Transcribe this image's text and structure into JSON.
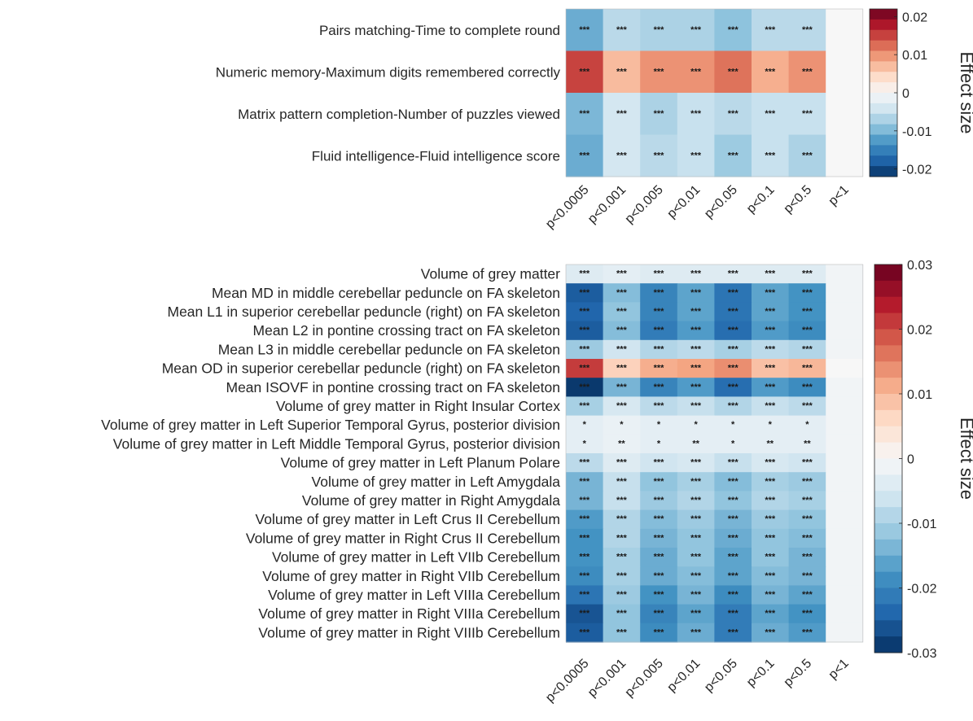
{
  "chart_data": [
    {
      "type": "heatmap",
      "x_categories": [
        "p<0.0005",
        "p<0.001",
        "p<0.005",
        "p<0.01",
        "p<0.05",
        "p<0.1",
        "p<0.5",
        "p<1"
      ],
      "y_categories": [
        "Pairs matching-Time to complete round",
        "Numeric memory-Maximum digits remembered correctly",
        "Matrix pattern completion-Number of puzzles viewed",
        "Fluid intelligence-Fluid intelligence score"
      ],
      "values": [
        [
          -0.011,
          -0.006,
          -0.007,
          -0.007,
          -0.009,
          -0.006,
          -0.006,
          0.0
        ],
        [
          0.015,
          0.007,
          0.01,
          0.01,
          0.012,
          0.008,
          0.01,
          0.0
        ],
        [
          -0.01,
          -0.004,
          -0.007,
          -0.005,
          -0.006,
          -0.005,
          -0.005,
          0.0
        ],
        [
          -0.011,
          -0.004,
          -0.006,
          -0.005,
          -0.008,
          -0.005,
          -0.007,
          0.0
        ]
      ],
      "annotations": [
        [
          "***",
          "***",
          "***",
          "***",
          "***",
          "***",
          "***",
          ""
        ],
        [
          "***",
          "***",
          "***",
          "***",
          "***",
          "***",
          "***",
          ""
        ],
        [
          "***",
          "***",
          "***",
          "***",
          "***",
          "***",
          "***",
          ""
        ],
        [
          "***",
          "***",
          "***",
          "***",
          "***",
          "***",
          "***",
          ""
        ]
      ],
      "colorbar": {
        "label": "Effect size",
        "range": [
          -0.022,
          0.022
        ],
        "ticks": [
          0.02,
          0.01,
          0,
          -0.01,
          -0.02
        ],
        "tick_labels": [
          "0.02",
          "0.01",
          "0",
          "-0.01",
          "-0.02"
        ]
      },
      "colormap": "blue-white-red"
    },
    {
      "type": "heatmap",
      "x_categories": [
        "p<0.0005",
        "p<0.001",
        "p<0.005",
        "p<0.01",
        "p<0.05",
        "p<0.1",
        "p<0.5",
        "p<1"
      ],
      "y_categories": [
        "Volume of grey matter",
        "Mean MD  in middle cerebellar peduncle on FA  skeleton",
        "Mean L1 in superior cerebellar peduncle (right) on FA  skeleton",
        "Mean L2  in pontine crossing tract on FA  skeleton",
        "Mean L3 in middle cerebellar peduncle on FA  skeleton",
        "Mean OD  in superior cerebellar peduncle (right) on FA  skeleton",
        "Mean ISOVF  in pontine crossing tract on FA  skeleton",
        "Volume of grey matter in Right Insular Cortex",
        "Volume of grey matter in Left Superior Temporal Gyrus, posterior division",
        "Volume of grey matter in Left Middle Temporal Gyrus, posterior division",
        "Volume of grey matter in Left Planum Polare",
        "Volume of grey matter in Left Amygdala",
        "Volume of grey matter in Right Amygdala",
        "Volume of grey matter in Left Crus II Cerebellum",
        "Volume of grey matter in Right Crus II Cerebellum",
        "Volume of grey matter in Left VIIb Cerebellum",
        "Volume of grey matter in Right VIIb Cerebellum",
        "Volume of grey matter in Left VIIIa Cerebellum",
        "Volume of grey matter in Right VIIIa Cerebellum",
        "Volume of grey matter in Right VIIIb Cerebellum"
      ],
      "values": [
        [
          -0.004,
          -0.003,
          -0.004,
          -0.004,
          -0.004,
          -0.004,
          -0.004,
          -0.001
        ],
        [
          -0.025,
          -0.013,
          -0.02,
          -0.016,
          -0.022,
          -0.016,
          -0.018,
          -0.001
        ],
        [
          -0.024,
          -0.012,
          -0.02,
          -0.016,
          -0.022,
          -0.016,
          -0.018,
          -0.001
        ],
        [
          -0.025,
          -0.013,
          -0.021,
          -0.017,
          -0.023,
          -0.017,
          -0.019,
          -0.001
        ],
        [
          -0.011,
          -0.006,
          -0.009,
          -0.008,
          -0.01,
          -0.008,
          -0.009,
          -0.001
        ],
        [
          0.021,
          0.007,
          0.011,
          0.012,
          0.014,
          0.009,
          0.01,
          0.0
        ],
        [
          -0.029,
          -0.014,
          -0.02,
          -0.017,
          -0.023,
          -0.017,
          -0.019,
          -0.001
        ],
        [
          -0.01,
          -0.005,
          -0.008,
          -0.007,
          -0.009,
          -0.007,
          -0.008,
          -0.001
        ],
        [
          -0.003,
          -0.002,
          -0.003,
          -0.003,
          -0.003,
          -0.003,
          -0.003,
          -0.001
        ],
        [
          -0.003,
          -0.002,
          -0.003,
          -0.003,
          -0.003,
          -0.003,
          -0.003,
          -0.001
        ],
        [
          -0.008,
          -0.004,
          -0.006,
          -0.005,
          -0.007,
          -0.005,
          -0.006,
          -0.001
        ],
        [
          -0.014,
          -0.007,
          -0.012,
          -0.01,
          -0.013,
          -0.01,
          -0.011,
          -0.001
        ],
        [
          -0.014,
          -0.007,
          -0.011,
          -0.009,
          -0.012,
          -0.009,
          -0.01,
          -0.001
        ],
        [
          -0.017,
          -0.009,
          -0.013,
          -0.011,
          -0.014,
          -0.011,
          -0.012,
          -0.001
        ],
        [
          -0.018,
          -0.009,
          -0.014,
          -0.012,
          -0.015,
          -0.012,
          -0.013,
          -0.001
        ],
        [
          -0.018,
          -0.01,
          -0.015,
          -0.012,
          -0.016,
          -0.012,
          -0.014,
          -0.001
        ],
        [
          -0.019,
          -0.01,
          -0.015,
          -0.013,
          -0.016,
          -0.013,
          -0.014,
          -0.001
        ],
        [
          -0.022,
          -0.011,
          -0.018,
          -0.014,
          -0.019,
          -0.014,
          -0.016,
          -0.001
        ],
        [
          -0.026,
          -0.012,
          -0.02,
          -0.016,
          -0.021,
          -0.016,
          -0.018,
          -0.001
        ],
        [
          -0.025,
          -0.012,
          -0.019,
          -0.015,
          -0.021,
          -0.015,
          -0.017,
          -0.001
        ]
      ],
      "annotations": [
        [
          "***",
          "***",
          "***",
          "***",
          "***",
          "***",
          "***",
          ""
        ],
        [
          "***",
          "***",
          "***",
          "***",
          "***",
          "***",
          "***",
          ""
        ],
        [
          "***",
          "***",
          "***",
          "***",
          "***",
          "***",
          "***",
          ""
        ],
        [
          "***",
          "***",
          "***",
          "***",
          "***",
          "***",
          "***",
          ""
        ],
        [
          "***",
          "***",
          "***",
          "***",
          "***",
          "***",
          "***",
          ""
        ],
        [
          "***",
          "***",
          "***",
          "***",
          "***",
          "***",
          "***",
          ""
        ],
        [
          "***",
          "***",
          "***",
          "***",
          "***",
          "***",
          "***",
          ""
        ],
        [
          "***",
          "***",
          "***",
          "***",
          "***",
          "***",
          "***",
          ""
        ],
        [
          "*",
          "*",
          "*",
          "*",
          "*",
          "*",
          "*",
          ""
        ],
        [
          "*",
          "**",
          "*",
          "**",
          "*",
          "**",
          "**",
          ""
        ],
        [
          "***",
          "***",
          "***",
          "***",
          "***",
          "***",
          "***",
          ""
        ],
        [
          "***",
          "***",
          "***",
          "***",
          "***",
          "***",
          "***",
          ""
        ],
        [
          "***",
          "***",
          "***",
          "***",
          "***",
          "***",
          "***",
          ""
        ],
        [
          "***",
          "***",
          "***",
          "***",
          "***",
          "***",
          "***",
          ""
        ],
        [
          "***",
          "***",
          "***",
          "***",
          "***",
          "***",
          "***",
          ""
        ],
        [
          "***",
          "***",
          "***",
          "***",
          "***",
          "***",
          "***",
          ""
        ],
        [
          "***",
          "***",
          "***",
          "***",
          "***",
          "***",
          "***",
          ""
        ],
        [
          "***",
          "***",
          "***",
          "***",
          "***",
          "***",
          "***",
          ""
        ],
        [
          "***",
          "***",
          "***",
          "***",
          "***",
          "***",
          "***",
          ""
        ],
        [
          "***",
          "***",
          "***",
          "***",
          "***",
          "***",
          "***",
          ""
        ]
      ],
      "colorbar": {
        "label": "Effect size",
        "range": [
          -0.03,
          0.03
        ],
        "ticks": [
          0.03,
          0.02,
          0.01,
          0,
          -0.01,
          -0.02,
          -0.03
        ],
        "tick_labels": [
          "0.03",
          "0.02",
          "0.01",
          "0",
          "-0.01",
          "-0.02",
          "-0.03"
        ]
      },
      "colormap": "blue-white-red"
    }
  ]
}
